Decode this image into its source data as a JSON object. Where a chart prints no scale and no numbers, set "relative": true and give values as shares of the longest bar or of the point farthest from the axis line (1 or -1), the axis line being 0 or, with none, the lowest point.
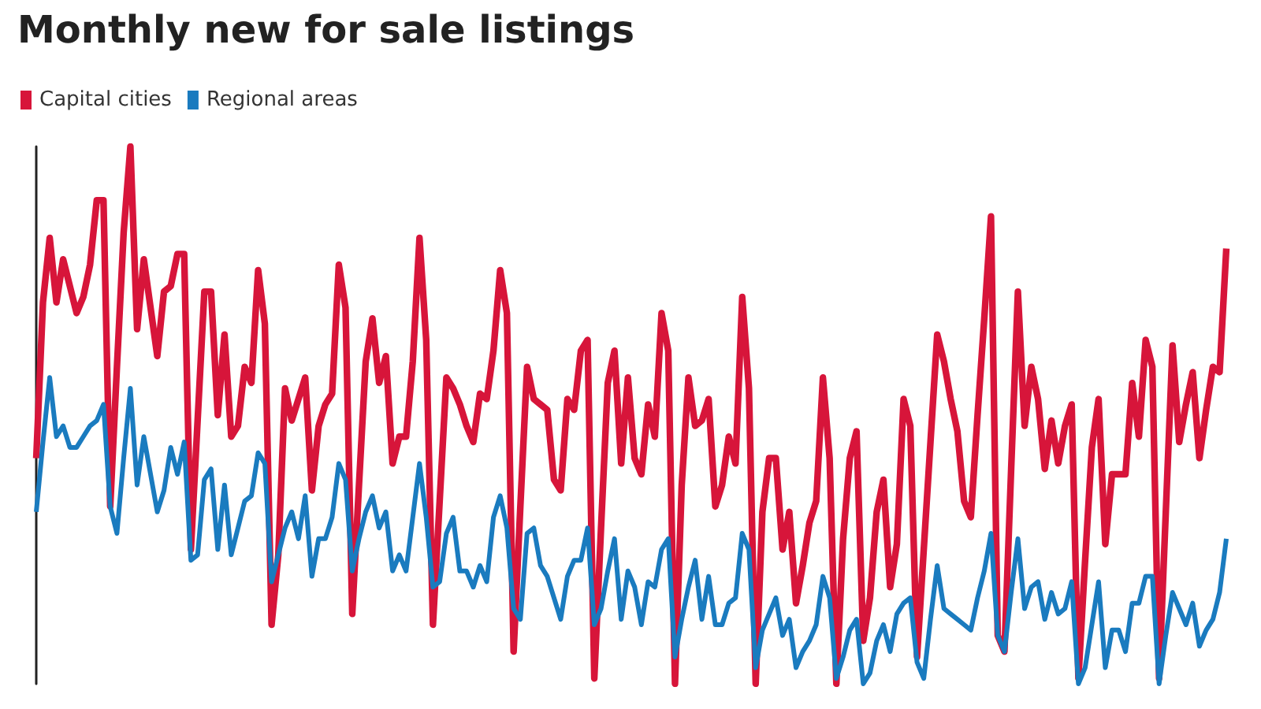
{
  "chart_data": {
    "type": "line",
    "title": "Monthly new for sale listings",
    "relative": true,
    "grid": false,
    "legend": "top left",
    "line_style": "solid",
    "categories": [
      null,
      null,
      null,
      null,
      null,
      null,
      null,
      null,
      null,
      null,
      null,
      null,
      null,
      null,
      null,
      null,
      null,
      null,
      null,
      null,
      null,
      null,
      null,
      null,
      null,
      null,
      null,
      null,
      null,
      null,
      null,
      null,
      null,
      null,
      null,
      null,
      null,
      null,
      null,
      null,
      null,
      null,
      null,
      null,
      null,
      null,
      null,
      null,
      null,
      null,
      null,
      null,
      null,
      null,
      null,
      null,
      null,
      null,
      null,
      null,
      null,
      null,
      null,
      null,
      null,
      null,
      null,
      null,
      null,
      null,
      null,
      null,
      null,
      null,
      null,
      null,
      null,
      null,
      null,
      null,
      null,
      null,
      null,
      null,
      null,
      null,
      null,
      null,
      null,
      null,
      null,
      null,
      null,
      null,
      null,
      null,
      null,
      null,
      null,
      null,
      null,
      null,
      null,
      null,
      null,
      null,
      null,
      null,
      null,
      null,
      null,
      null,
      null,
      null,
      null,
      null,
      null,
      null,
      null,
      null,
      null,
      null,
      null,
      null,
      null,
      null,
      null,
      null,
      null,
      null,
      null,
      null,
      null,
      null,
      null,
      null,
      null,
      null,
      null,
      null,
      null,
      null,
      null,
      null,
      null,
      null,
      null,
      null,
      null,
      null,
      null,
      null,
      null,
      null,
      null,
      null,
      null,
      null,
      null,
      null,
      null,
      null,
      null,
      null,
      null,
      null,
      null,
      null,
      null,
      null,
      null,
      null,
      null,
      null,
      null,
      null,
      null,
      null
    ],
    "series": [
      {
        "name": "Capital cities",
        "color": "#d7153a",
        "values": [
          0.42,
          0.71,
          0.83,
          0.71,
          0.79,
          0.74,
          0.69,
          0.72,
          0.78,
          0.9,
          0.9,
          0.33,
          0.59,
          0.84,
          1,
          0.66,
          0.79,
          0.7,
          0.61,
          0.73,
          0.74,
          0.8,
          0.8,
          0.25,
          0.49,
          0.73,
          0.73,
          0.5,
          0.65,
          0.46,
          0.48,
          0.59,
          0.56,
          0.77,
          0.67,
          0.11,
          0.24,
          0.55,
          0.49,
          0.53,
          0.57,
          0.36,
          0.48,
          0.52,
          0.54,
          0.78,
          0.7,
          0.13,
          0.37,
          0.6,
          0.68,
          0.56,
          0.61,
          0.41,
          0.46,
          0.46,
          0.6,
          0.83,
          0.64,
          0.11,
          0.34,
          0.57,
          0.55,
          0.52,
          0.48,
          0.45,
          0.54,
          0.53,
          0.62,
          0.77,
          0.69,
          0.06,
          0.33,
          0.59,
          0.53,
          0.52,
          0.51,
          0.38,
          0.36,
          0.53,
          0.51,
          0.62,
          0.64,
          0.01,
          0.29,
          0.56,
          0.62,
          0.41,
          0.57,
          0.42,
          0.39,
          0.52,
          0.46,
          0.69,
          0.62,
          0,
          0.37,
          0.57,
          0.48,
          0.49,
          0.53,
          0.33,
          0.37,
          0.46,
          0.41,
          0.72,
          0.55,
          0,
          0.32,
          0.42,
          0.42,
          0.25,
          0.32,
          0.15,
          0.22,
          0.3,
          0.34,
          0.57,
          0.42,
          0,
          0.27,
          0.42,
          0.47,
          0.08,
          0.16,
          0.32,
          0.38,
          0.18,
          0.26,
          0.53,
          0.48,
          0.05,
          0.25,
          0.45,
          0.65,
          0.6,
          0.53,
          0.47,
          0.34,
          0.31,
          0.5,
          0.68,
          0.87,
          0.09,
          0.06,
          0.4,
          0.73,
          0.48,
          0.59,
          0.53,
          0.4,
          0.49,
          0.41,
          0.48,
          0.52,
          0.01,
          0.23,
          0.44,
          0.53,
          0.26,
          0.39,
          0.39,
          0.39,
          0.56,
          0.46,
          0.64,
          0.59,
          0.01,
          0.32,
          0.63,
          0.45,
          0.52,
          0.58,
          0.42,
          0.51,
          0.59,
          0.58,
          0.81
        ]
      },
      {
        "name": "Regional areas",
        "color": "#1a7bbf",
        "values": [
          0.32,
          0.45,
          0.57,
          0.46,
          0.48,
          0.44,
          0.44,
          0.46,
          0.48,
          0.49,
          0.52,
          0.33,
          0.28,
          0.42,
          0.55,
          0.37,
          0.46,
          0.39,
          0.32,
          0.36,
          0.44,
          0.39,
          0.45,
          0.23,
          0.24,
          0.38,
          0.4,
          0.25,
          0.37,
          0.24,
          0.29,
          0.34,
          0.35,
          0.43,
          0.41,
          0.19,
          0.24,
          0.29,
          0.32,
          0.27,
          0.35,
          0.2,
          0.27,
          0.27,
          0.31,
          0.41,
          0.38,
          0.21,
          0.27,
          0.32,
          0.35,
          0.29,
          0.32,
          0.21,
          0.24,
          0.21,
          0.31,
          0.41,
          0.31,
          0.18,
          0.19,
          0.28,
          0.31,
          0.21,
          0.21,
          0.18,
          0.22,
          0.19,
          0.31,
          0.35,
          0.29,
          0.14,
          0.12,
          0.28,
          0.29,
          0.22,
          0.2,
          0.16,
          0.12,
          0.2,
          0.23,
          0.23,
          0.29,
          0.11,
          0.14,
          0.21,
          0.27,
          0.12,
          0.21,
          0.18,
          0.11,
          0.19,
          0.18,
          0.25,
          0.27,
          0.05,
          0.12,
          0.18,
          0.23,
          0.12,
          0.2,
          0.11,
          0.11,
          0.15,
          0.16,
          0.28,
          0.25,
          0.03,
          0.1,
          0.13,
          0.16,
          0.09,
          0.12,
          0.03,
          0.06,
          0.08,
          0.11,
          0.2,
          0.16,
          0.01,
          0.05,
          0.1,
          0.12,
          0,
          0.02,
          0.08,
          0.11,
          0.06,
          0.13,
          0.15,
          0.16,
          0.04,
          0.01,
          0.12,
          0.22,
          0.14,
          0.13,
          0.12,
          0.11,
          0.1,
          0.16,
          0.21,
          0.28,
          0.09,
          0.06,
          0.17,
          0.27,
          0.14,
          0.18,
          0.19,
          0.12,
          0.17,
          0.13,
          0.14,
          0.19,
          0,
          0.03,
          0.11,
          0.19,
          0.03,
          0.1,
          0.1,
          0.06,
          0.15,
          0.15,
          0.2,
          0.2,
          0,
          0.09,
          0.17,
          0.14,
          0.11,
          0.15,
          0.07,
          0.1,
          0.12,
          0.17,
          0.27
        ]
      }
    ]
  }
}
